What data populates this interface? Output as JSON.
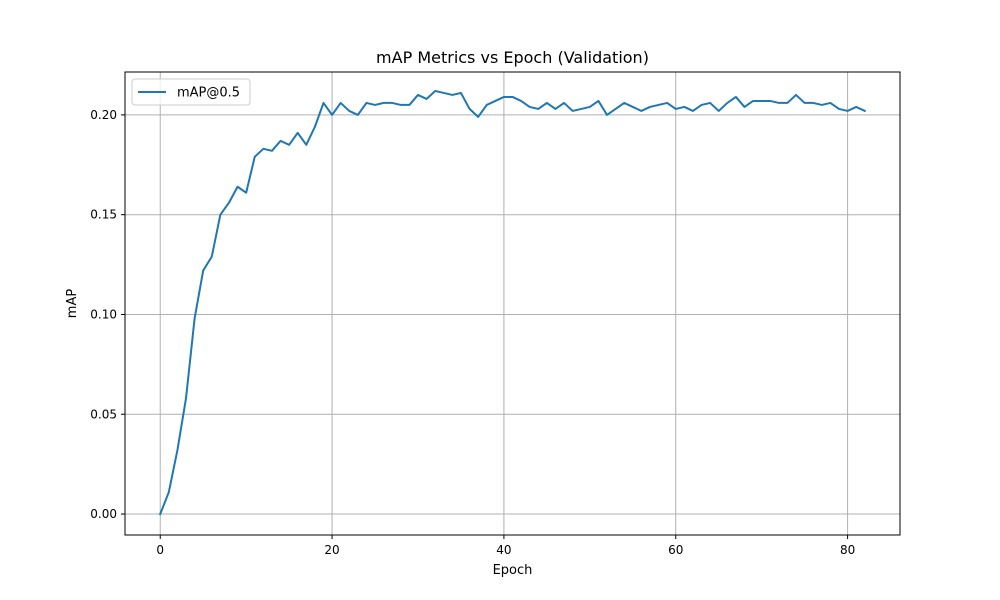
{
  "chart_data": {
    "type": "line",
    "title": "mAP Metrics vs Epoch (Validation)",
    "xlabel": "Epoch",
    "ylabel": "mAP",
    "xlim": [
      -4.1,
      86.1
    ],
    "ylim": [
      -0.0105,
      0.2215
    ],
    "xticks": [
      0,
      20,
      40,
      60,
      80
    ],
    "yticks": [
      0.0,
      0.05,
      0.1,
      0.15,
      0.2
    ],
    "xtick_labels": [
      "0",
      "20",
      "40",
      "60",
      "80"
    ],
    "ytick_labels": [
      "0.00",
      "0.05",
      "0.10",
      "0.15",
      "0.20"
    ],
    "grid": true,
    "legend_position": "upper-left",
    "series": [
      {
        "name": "mAP@0.5",
        "color": "#1f77b4",
        "x": [
          0,
          1,
          2,
          3,
          4,
          5,
          6,
          7,
          8,
          9,
          10,
          11,
          12,
          13,
          14,
          15,
          16,
          17,
          18,
          19,
          20,
          21,
          22,
          23,
          24,
          25,
          26,
          27,
          28,
          29,
          30,
          31,
          32,
          33,
          34,
          35,
          36,
          37,
          38,
          39,
          40,
          41,
          42,
          43,
          44,
          45,
          46,
          47,
          48,
          49,
          50,
          51,
          52,
          53,
          54,
          55,
          56,
          57,
          58,
          59,
          60,
          61,
          62,
          63,
          64,
          65,
          66,
          67,
          68,
          69,
          70,
          71,
          72,
          73,
          74,
          75,
          76,
          77,
          78,
          79,
          80,
          81,
          82
        ],
        "y": [
          0.0,
          0.011,
          0.032,
          0.058,
          0.098,
          0.122,
          0.129,
          0.15,
          0.156,
          0.164,
          0.161,
          0.179,
          0.183,
          0.182,
          0.187,
          0.185,
          0.191,
          0.185,
          0.194,
          0.206,
          0.2,
          0.206,
          0.202,
          0.2,
          0.206,
          0.205,
          0.206,
          0.206,
          0.205,
          0.205,
          0.21,
          0.208,
          0.212,
          0.211,
          0.21,
          0.211,
          0.203,
          0.199,
          0.205,
          0.207,
          0.209,
          0.209,
          0.207,
          0.204,
          0.203,
          0.206,
          0.203,
          0.206,
          0.202,
          0.203,
          0.204,
          0.207,
          0.2,
          0.203,
          0.206,
          0.204,
          0.202,
          0.204,
          0.205,
          0.206,
          0.203,
          0.204,
          0.202,
          0.205,
          0.206,
          0.202,
          0.206,
          0.209,
          0.204,
          0.207,
          0.207,
          0.207,
          0.206,
          0.206,
          0.21,
          0.206,
          0.206,
          0.205,
          0.206,
          0.203,
          0.202,
          0.204,
          0.202
        ]
      }
    ]
  }
}
